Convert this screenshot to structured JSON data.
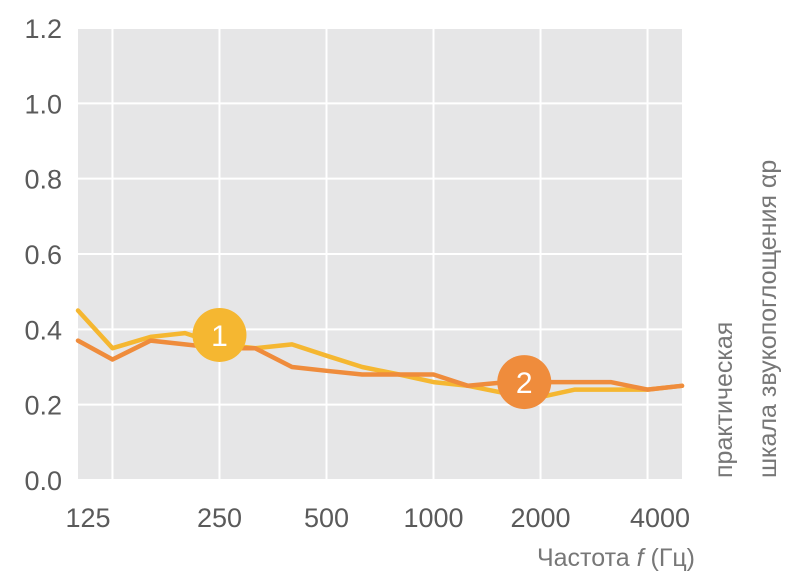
{
  "chart_data": {
    "type": "line",
    "x_ticks": [
      "125",
      "250",
      "500",
      "1000",
      "2000",
      "4000"
    ],
    "y_ticks": [
      "0.0",
      "0.2",
      "0.4",
      "0.6",
      "0.8",
      "1.0",
      "1.2"
    ],
    "ylim": [
      0,
      1.2
    ],
    "x_scale": "log (octave / third-octave bands, 100–5000 Hz)",
    "xlabel_main": "Частота ",
    "xlabel_var": "f",
    "xlabel_unit": " (Гц)",
    "ylabel_line1": "практическая",
    "ylabel_line2": "шкала звукопоглощения αp",
    "grid": true,
    "background_color": "#e6e6e7",
    "series": [
      {
        "marker": "1",
        "color": "#f5b731",
        "x": [
          100,
          125,
          160,
          200,
          250,
          315,
          400,
          500,
          630,
          800,
          1000,
          1250,
          1600,
          2000,
          2500,
          3150,
          4000,
          5000
        ],
        "y": [
          0.45,
          0.35,
          0.38,
          0.39,
          0.36,
          0.35,
          0.36,
          0.33,
          0.3,
          0.28,
          0.26,
          0.25,
          0.23,
          0.22,
          0.24,
          0.24,
          0.24,
          0.25
        ]
      },
      {
        "marker": "2",
        "color": "#ef8c3c",
        "x": [
          100,
          125,
          160,
          200,
          250,
          315,
          400,
          500,
          630,
          800,
          1000,
          1250,
          1600,
          2000,
          2500,
          3150,
          4000,
          5000
        ],
        "y": [
          0.37,
          0.32,
          0.37,
          0.36,
          0.35,
          0.35,
          0.3,
          0.29,
          0.28,
          0.28,
          0.28,
          0.25,
          0.26,
          0.26,
          0.26,
          0.26,
          0.24,
          0.25
        ]
      }
    ],
    "markers": [
      {
        "label": "1",
        "x": 250,
        "y": 0.385,
        "color": "#f5b731"
      },
      {
        "label": "2",
        "x": 1800,
        "y": 0.26,
        "color": "#ef8c3c"
      }
    ]
  }
}
